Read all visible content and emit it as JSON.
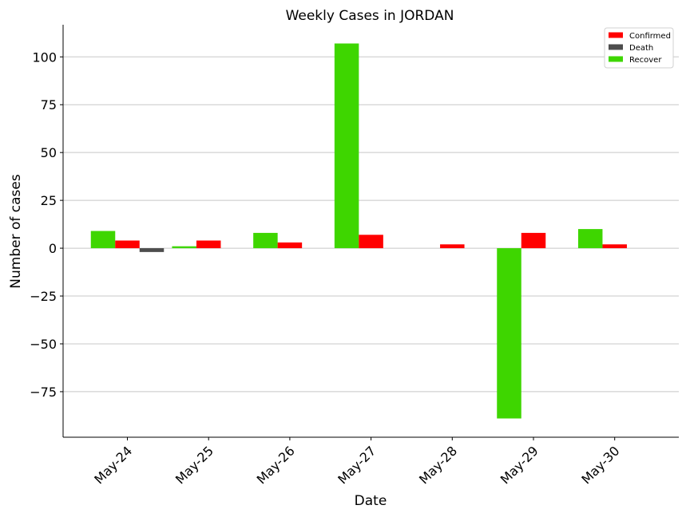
{
  "chart_data": {
    "type": "bar",
    "title": "Weekly Cases in JORDAN",
    "xlabel": "Date",
    "ylabel": "Number of cases",
    "categories": [
      "May-24",
      "May-25",
      "May-26",
      "May-27",
      "May-28",
      "May-29",
      "May-30"
    ],
    "series": [
      {
        "name": "Recover",
        "color": "#3ed600",
        "values": [
          9,
          1,
          8,
          107,
          0,
          -89,
          10
        ]
      },
      {
        "name": "Confirmed",
        "color": "#ff0000",
        "values": [
          4,
          4,
          3,
          7,
          2,
          8,
          2
        ]
      },
      {
        "name": "Death",
        "color": "#4d4d4d",
        "values": [
          -2,
          0,
          0,
          0,
          0,
          0,
          0
        ]
      }
    ],
    "legend_order": [
      "Confirmed",
      "Death",
      "Recover"
    ],
    "ylim": [
      -98.8,
      116.8
    ],
    "yticks": [
      -75,
      -50,
      -25,
      0,
      25,
      50,
      75,
      100
    ],
    "ytick_labels": [
      "−75",
      "−50",
      "−25",
      "0",
      "25",
      "50",
      "75",
      "100"
    ],
    "grid": "horizontal",
    "legend_position": "top-right"
  }
}
